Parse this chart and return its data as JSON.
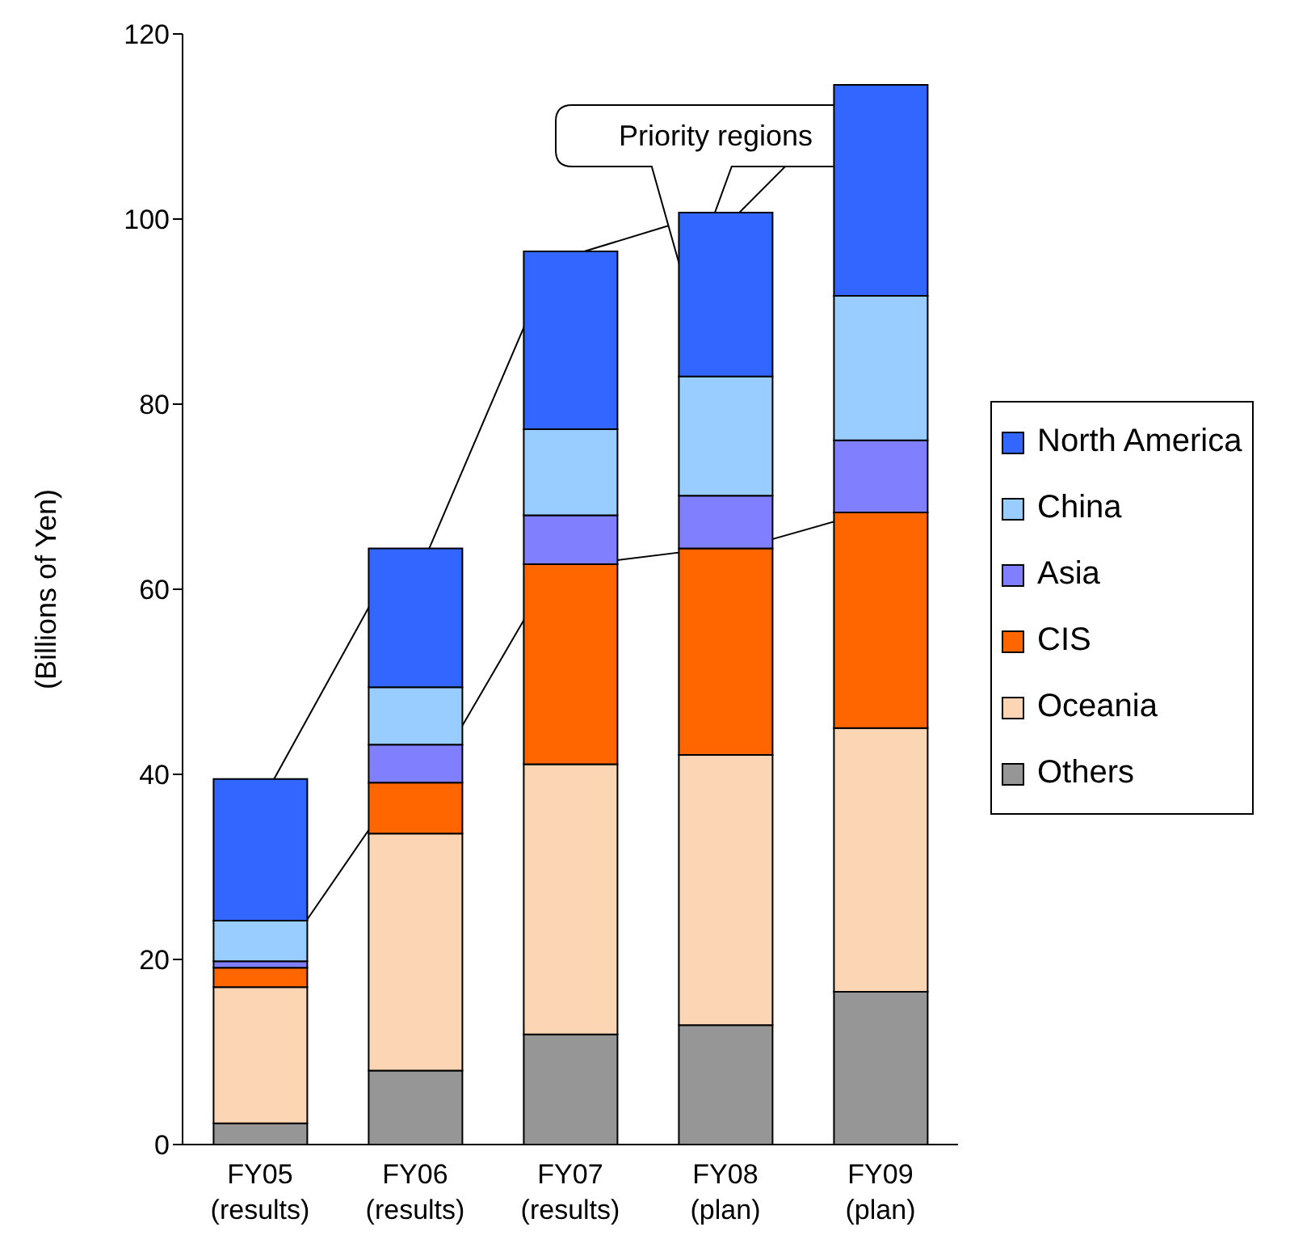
{
  "chart_data": {
    "type": "bar",
    "stacked": true,
    "ylabel": "(Billions of Yen)",
    "categories": [
      "FY05 (results)",
      "FY06 (results)",
      "FY07 (results)",
      "FY08 (plan)",
      "FY09 (plan)"
    ],
    "series": [
      {
        "name": "Others",
        "color": "#969696",
        "values": [
          2.3,
          8.0,
          11.9,
          12.9,
          16.5
        ]
      },
      {
        "name": "Oceania",
        "color": "#fcd5b5",
        "values": [
          14.7,
          25.6,
          29.2,
          29.2,
          28.5
        ]
      },
      {
        "name": "CIS",
        "color": "#ff6600",
        "values": [
          2.1,
          5.5,
          21.6,
          22.3,
          23.3
        ]
      },
      {
        "name": "Asia",
        "color": "#8080ff",
        "values": [
          0.7,
          4.1,
          5.3,
          5.7,
          7.8
        ]
      },
      {
        "name": "China",
        "color": "#99ccff",
        "values": [
          4.4,
          6.2,
          9.3,
          12.9,
          15.6
        ]
      },
      {
        "name": "North America",
        "color": "#3366ff",
        "values": [
          15.3,
          15.0,
          19.2,
          17.7,
          22.8
        ]
      }
    ],
    "ylim": [
      0,
      120
    ],
    "yticks": [
      0,
      20,
      40,
      60,
      80,
      100,
      120
    ],
    "grid": false,
    "legend": "right",
    "annotations": [
      "Priority regions"
    ]
  }
}
